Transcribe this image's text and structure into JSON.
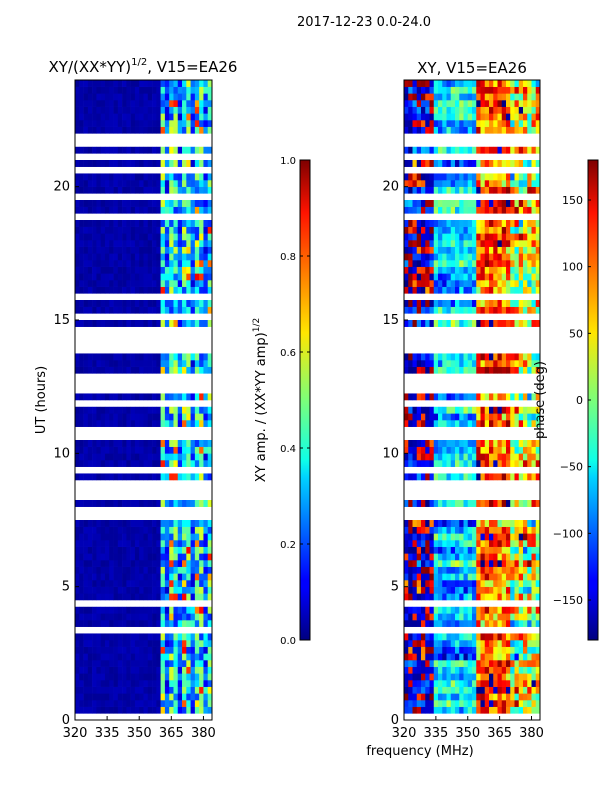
{
  "figure": {
    "suptitle": "2017-12-23 0.0-24.0",
    "shared_xlabel": "frequency (MHz)"
  },
  "chart_data": [
    {
      "type": "heatmap",
      "title": "XY/(XX*YY)",
      "title_exp": "1/2",
      "title_tail": ", V15=EA26",
      "ylabel": "UT (hours)",
      "x_ticks": [
        320,
        335,
        350,
        365,
        380
      ],
      "y_ticks": [
        0,
        5,
        10,
        15,
        20
      ],
      "xlim": [
        320,
        384
      ],
      "ylim": [
        0,
        24
      ],
      "colorbar": {
        "label": "XY amp. / (XX*YY amp)",
        "label_exp": "1/2",
        "ticks": [
          "0.0",
          "0.2",
          "0.4",
          "0.6",
          "0.8",
          "1.0"
        ],
        "range": [
          0,
          1
        ]
      }
    },
    {
      "type": "heatmap",
      "title": "XY, V15=EA26",
      "x_ticks": [
        320,
        335,
        350,
        365,
        380
      ],
      "y_ticks": [
        0,
        5,
        10,
        15,
        20
      ],
      "xlim": [
        320,
        384
      ],
      "ylim": [
        0,
        24
      ],
      "colorbar": {
        "label": "phase (deg)",
        "ticks": [
          "150",
          "100",
          "50",
          "0",
          "−50",
          "−100",
          "−150"
        ],
        "tick_values": [
          150,
          100,
          50,
          0,
          -50,
          -100,
          -150
        ],
        "range": [
          -180,
          180
        ]
      }
    }
  ]
}
